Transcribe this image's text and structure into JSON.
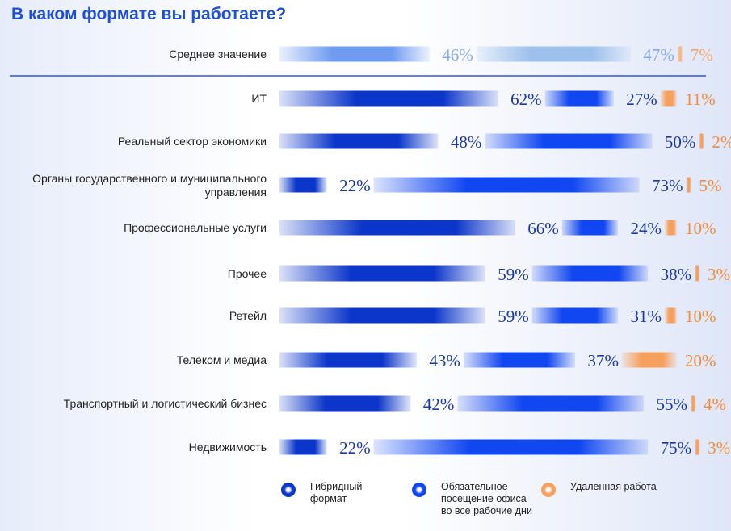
{
  "title": "В каком формате вы работаете?",
  "colors": {
    "hybrid": "#0b36c9",
    "office": "#1147f0",
    "remote": "#f7a05e",
    "avg_hybrid": "#6f9cf0",
    "avg_office": "#9ec0ec",
    "avg_remote": "#f7b787"
  },
  "chart_data": {
    "type": "bar",
    "stacked": true,
    "orientation": "horizontal",
    "categories": [
      "Среднее значение",
      "ИТ",
      "Реальный сектор экономики",
      "Органы государственного и муниципального управления",
      "Профессиональные услуги",
      "Прочее",
      "Ретейл",
      "Телеком и медиа",
      "Транспортный и логистический бизнес",
      "Недвижимость"
    ],
    "series": [
      {
        "name": "Гибридный формат",
        "values": [
          46,
          62,
          48,
          22,
          66,
          59,
          59,
          43,
          42,
          22
        ]
      },
      {
        "name": "Обязательное посещение офиса во все рабочие дни",
        "values": [
          47,
          27,
          50,
          73,
          24,
          38,
          31,
          37,
          55,
          75
        ]
      },
      {
        "name": "Удаленная работа",
        "values": [
          7,
          11,
          2,
          5,
          10,
          3,
          10,
          20,
          4,
          3
        ]
      }
    ],
    "value_suffix": "%",
    "legend_position": "bottom"
  },
  "legend": [
    {
      "label": "Гибридный формат",
      "icon": "hybrid-legend-icon"
    },
    {
      "label": "Обязательное посещение офиса во все рабочие дни",
      "icon": "office-legend-icon"
    },
    {
      "label": "Удаленная работа",
      "icon": "remote-legend-icon"
    }
  ]
}
